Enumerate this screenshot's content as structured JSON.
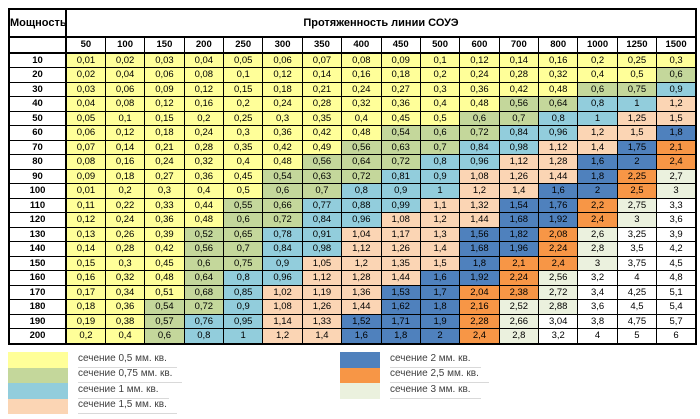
{
  "chart_data": {
    "type": "heatmap",
    "corner_label": "Мощность",
    "x_axis_label": "Протяженность линии СОУЭ",
    "x_categories": [
      "50",
      "100",
      "150",
      "200",
      "250",
      "300",
      "350",
      "400",
      "450",
      "500",
      "600",
      "700",
      "800",
      "1000",
      "1250",
      "1500"
    ],
    "y_categories": [
      "10",
      "20",
      "30",
      "40",
      "50",
      "60",
      "70",
      "80",
      "90",
      "100",
      "110",
      "120",
      "130",
      "140",
      "150",
      "160",
      "170",
      "180",
      "190",
      "200"
    ],
    "color_map": {
      "Y": "#FFFF99",
      "G": "#C4D79B",
      "B": "#92CDDC",
      "P": "#FBD5B4",
      "D": "#4F81BD",
      "O": "#F79646",
      "L": "#EBF1DE",
      "W": "#FFFFFF"
    },
    "rows": [
      {
        "power": "10",
        "values": [
          "0,01",
          "0,02",
          "0,03",
          "0,04",
          "0,05",
          "0,06",
          "0,07",
          "0,08",
          "0,09",
          "0,1",
          "0,12",
          "0,14",
          "0,16",
          "0,2",
          "0,25",
          "0,3"
        ],
        "colors": "YYYYYYYYYYYYYYYY"
      },
      {
        "power": "20",
        "values": [
          "0,02",
          "0,04",
          "0,06",
          "0,08",
          "0,1",
          "0,12",
          "0,14",
          "0,16",
          "0,18",
          "0,2",
          "0,24",
          "0,28",
          "0,32",
          "0,4",
          "0,5",
          "0,6"
        ],
        "colors": "YYYYYYYYYYYYYYYG"
      },
      {
        "power": "30",
        "values": [
          "0,03",
          "0,06",
          "0,09",
          "0,12",
          "0,15",
          "0,18",
          "0,21",
          "0,24",
          "0,27",
          "0,3",
          "0,36",
          "0,42",
          "0,48",
          "0,6",
          "0,75",
          "0,9"
        ],
        "colors": "YYYYYYYYYYYYYGGB"
      },
      {
        "power": "40",
        "values": [
          "0,04",
          "0,08",
          "0,12",
          "0,16",
          "0,2",
          "0,24",
          "0,28",
          "0,32",
          "0,36",
          "0,4",
          "0,48",
          "0,56",
          "0,64",
          "0,8",
          "1",
          "1,2"
        ],
        "colors": "YYYYYYYYYYYGGBBP"
      },
      {
        "power": "50",
        "values": [
          "0,05",
          "0,1",
          "0,15",
          "0,2",
          "0,25",
          "0,3",
          "0,35",
          "0,4",
          "0,45",
          "0,5",
          "0,6",
          "0,7",
          "0,8",
          "1",
          "1,25",
          "1,5"
        ],
        "colors": "YYYYYYYYYYGGBBPP"
      },
      {
        "power": "60",
        "values": [
          "0,06",
          "0,12",
          "0,18",
          "0,24",
          "0,3",
          "0,36",
          "0,42",
          "0,48",
          "0,54",
          "0,6",
          "0,72",
          "0,84",
          "0,96",
          "1,2",
          "1,5",
          "1,8"
        ],
        "colors": "YYYYYYYYGGGBBPPD"
      },
      {
        "power": "70",
        "values": [
          "0,07",
          "0,14",
          "0,21",
          "0,28",
          "0,35",
          "0,42",
          "0,49",
          "0,56",
          "0,63",
          "0,7",
          "0,84",
          "0,98",
          "1,12",
          "1,4",
          "1,75",
          "2,1"
        ],
        "colors": "YYYYYYYGGGBBPPDO"
      },
      {
        "power": "80",
        "values": [
          "0,08",
          "0,16",
          "0,24",
          "0,32",
          "0,4",
          "0,48",
          "0,56",
          "0,64",
          "0,72",
          "0,8",
          "0,96",
          "1,12",
          "1,28",
          "1,6",
          "2",
          "2,4"
        ],
        "colors": "YYYYYYGGGBBPPDDO"
      },
      {
        "power": "90",
        "values": [
          "0,09",
          "0,18",
          "0,27",
          "0,36",
          "0,45",
          "0,54",
          "0,63",
          "0,72",
          "0,81",
          "0,9",
          "1,08",
          "1,26",
          "1,44",
          "1,8",
          "2,25",
          "2,7"
        ],
        "colors": "YYYYYGGGBBPPPDOL"
      },
      {
        "power": "100",
        "values": [
          "0,01",
          "0,2",
          "0,3",
          "0,4",
          "0,5",
          "0,6",
          "0,7",
          "0,8",
          "0,9",
          "1",
          "1,2",
          "1,4",
          "1,6",
          "2",
          "2,5",
          "3"
        ],
        "colors": "YYYYYGGBBBPPDDOL"
      },
      {
        "power": "110",
        "values": [
          "0,11",
          "0,22",
          "0,33",
          "0,44",
          "0,55",
          "0,66",
          "0,77",
          "0,88",
          "0,99",
          "1,1",
          "1,32",
          "1,54",
          "1,76",
          "2,2",
          "2,75",
          "3,3"
        ],
        "colors": "YYYYGGBBBPPDDOLW"
      },
      {
        "power": "120",
        "values": [
          "0,12",
          "0,24",
          "0,36",
          "0,48",
          "0,6",
          "0,72",
          "0,84",
          "0,96",
          "1,08",
          "1,2",
          "1,44",
          "1,68",
          "1,92",
          "2,4",
          "3",
          "3,6"
        ],
        "colors": "YYYYGGBBPPPDDOLW"
      },
      {
        "power": "130",
        "values": [
          "0,13",
          "0,26",
          "0,39",
          "0,52",
          "0,65",
          "0,78",
          "0,91",
          "1,04",
          "1,17",
          "1,3",
          "1,56",
          "1,82",
          "2,08",
          "2,6",
          "3,25",
          "3,9"
        ],
        "colors": "YYYGGBBPPPDDOLWW"
      },
      {
        "power": "140",
        "values": [
          "0,14",
          "0,28",
          "0,42",
          "0,56",
          "0,7",
          "0,84",
          "0,98",
          "1,12",
          "1,26",
          "1,4",
          "1,68",
          "1,96",
          "2,24",
          "2,8",
          "3,5",
          "4,2"
        ],
        "colors": "YYYGGBBPPPDDOLWW"
      },
      {
        "power": "150",
        "values": [
          "0,15",
          "0,3",
          "0,45",
          "0,6",
          "0,75",
          "0,9",
          "1,05",
          "1,2",
          "1,35",
          "1,5",
          "1,8",
          "2,1",
          "2,4",
          "3",
          "3,75",
          "4,5"
        ],
        "colors": "YYYGGBPPPPDOOLWW"
      },
      {
        "power": "160",
        "values": [
          "0,16",
          "0,32",
          "0,48",
          "0,64",
          "0,8",
          "0,96",
          "1,12",
          "1,28",
          "1,44",
          "1,6",
          "1,92",
          "2,24",
          "2,56",
          "3,2",
          "4",
          "4,8"
        ],
        "colors": "YYYGBBPPPDDOLWWW"
      },
      {
        "power": "170",
        "values": [
          "0,17",
          "0,34",
          "0,51",
          "0,68",
          "0,85",
          "1,02",
          "1,19",
          "1,36",
          "1,53",
          "1,7",
          "2,04",
          "2,38",
          "2,72",
          "3,4",
          "4,25",
          "5,1"
        ],
        "colors": "YYYGBPPPDDOOLWWW"
      },
      {
        "power": "180",
        "values": [
          "0,18",
          "0,36",
          "0,54",
          "0,72",
          "0,9",
          "1,08",
          "1,26",
          "1,44",
          "1,62",
          "1,8",
          "2,16",
          "2,52",
          "2,88",
          "3,6",
          "4,5",
          "5,4"
        ],
        "colors": "YYGGBPPPDDOLLWWW"
      },
      {
        "power": "190",
        "values": [
          "0,19",
          "0,38",
          "0,57",
          "0,76",
          "0,95",
          "1,14",
          "1,33",
          "1,52",
          "1,71",
          "1,9",
          "2,28",
          "2,66",
          "3,04",
          "3,8",
          "4,75",
          "5,7"
        ],
        "colors": "YYGBBPPDDDOLWWWW"
      },
      {
        "power": "200",
        "values": [
          "0,2",
          "0,4",
          "0,6",
          "0,8",
          "1",
          "1,2",
          "1,4",
          "1,6",
          "1,8",
          "2",
          "2,4",
          "2,8",
          "3,2",
          "4",
          "5",
          "6"
        ],
        "colors": "YYGBBPPDDDOLWWWW"
      }
    ],
    "legend": {
      "left": [
        {
          "label": "сечение 0,5 мм. кв.",
          "color": "#FFFF99"
        },
        {
          "label": "сечение 0,75 мм. кв.",
          "color": "#C4D79B"
        },
        {
          "label": "сечение 1 мм. кв.",
          "color": "#92CDDC"
        },
        {
          "label": "сечение 1,5 мм. кв.",
          "color": "#FBD5B4"
        }
      ],
      "right": [
        {
          "label": "сечение 2 мм. кв.",
          "color": "#4F81BD"
        },
        {
          "label": "сечение 2,5 мм. кв.",
          "color": "#F79646"
        },
        {
          "label": "сечение 3 мм. кв.",
          "color": "#EBF1DE"
        }
      ]
    }
  }
}
